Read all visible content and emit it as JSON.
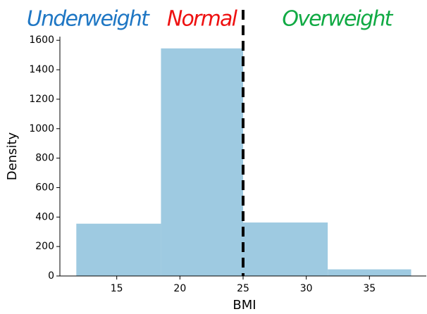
{
  "chart_data": {
    "type": "histogram",
    "xlabel": "BMI",
    "ylabel": "Density",
    "bins": [
      11.8,
      18.5,
      25,
      31.7,
      38.3
    ],
    "values": [
      355,
      1545,
      363,
      45
    ],
    "color": "#9ecae1",
    "xlim": [
      10.5,
      39.5
    ],
    "xticks": [
      15,
      20,
      25,
      30,
      35
    ],
    "ylim": [
      0,
      1625
    ],
    "yticks": [
      0,
      200,
      400,
      600,
      800,
      1000,
      1200,
      1400,
      1600
    ],
    "vline": 25,
    "annotations": [
      {
        "text": "Underweight",
        "color": "#1f77c4"
      },
      {
        "text": "Normal",
        "color": "#ee1111"
      },
      {
        "text": "Overweight",
        "color": "#11aa44"
      }
    ]
  }
}
